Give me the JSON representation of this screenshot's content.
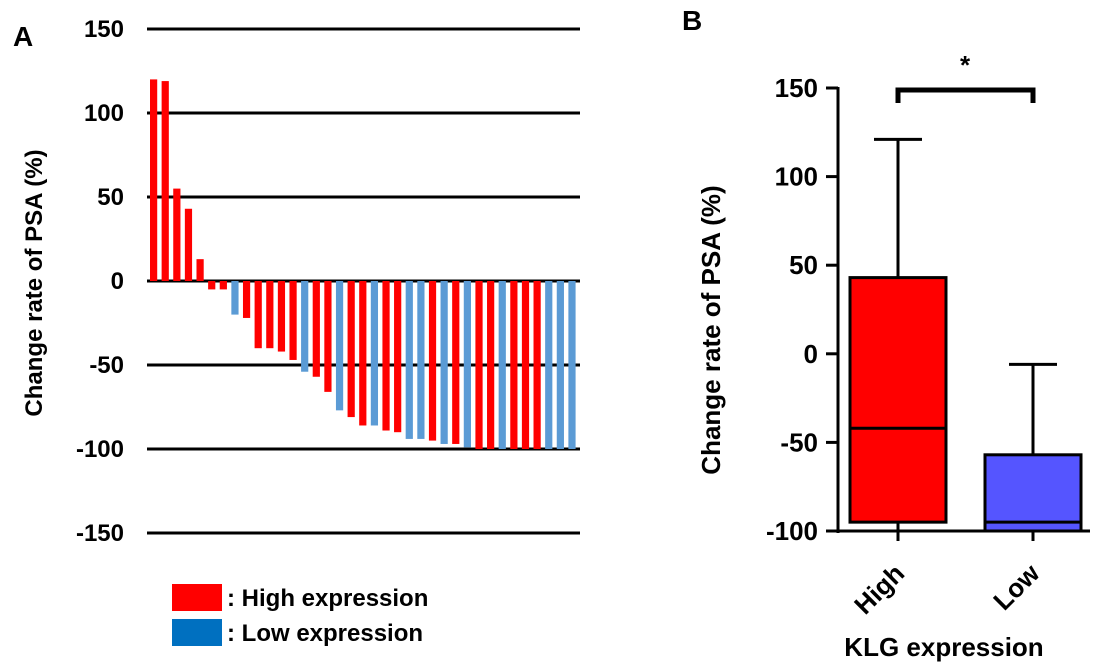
{
  "chart_data": [
    {
      "panel": "A",
      "type": "bar",
      "ylabel": "Change rate of PSA (%)",
      "xlabel": "",
      "ylim": [
        -150,
        150
      ],
      "yticks": [
        150,
        100,
        50,
        0,
        -50,
        -100,
        -150
      ],
      "grid": true,
      "legend_position": "bottom-left",
      "legend": [
        {
          "label": ": High expression",
          "color": "#ff0000"
        },
        {
          "label": ": Low expression",
          "color": "#0070c0"
        }
      ],
      "bars": [
        {
          "group": "high",
          "value": 120
        },
        {
          "group": "high",
          "value": 119
        },
        {
          "group": "high",
          "value": 55
        },
        {
          "group": "high",
          "value": 43
        },
        {
          "group": "high",
          "value": 13
        },
        {
          "group": "high",
          "value": -5
        },
        {
          "group": "high",
          "value": -5
        },
        {
          "group": "low",
          "value": -20
        },
        {
          "group": "high",
          "value": -22
        },
        {
          "group": "high",
          "value": -40
        },
        {
          "group": "high",
          "value": -40
        },
        {
          "group": "high",
          "value": -42
        },
        {
          "group": "high",
          "value": -47
        },
        {
          "group": "low",
          "value": -54
        },
        {
          "group": "high",
          "value": -57
        },
        {
          "group": "high",
          "value": -66
        },
        {
          "group": "low",
          "value": -77
        },
        {
          "group": "high",
          "value": -81
        },
        {
          "group": "high",
          "value": -86
        },
        {
          "group": "low",
          "value": -86
        },
        {
          "group": "high",
          "value": -89
        },
        {
          "group": "high",
          "value": -90
        },
        {
          "group": "low",
          "value": -94
        },
        {
          "group": "low",
          "value": -94
        },
        {
          "group": "high",
          "value": -95
        },
        {
          "group": "low",
          "value": -97
        },
        {
          "group": "high",
          "value": -97
        },
        {
          "group": "low",
          "value": -99
        },
        {
          "group": "high",
          "value": -100
        },
        {
          "group": "high",
          "value": -100
        },
        {
          "group": "low",
          "value": -100
        },
        {
          "group": "high",
          "value": -100
        },
        {
          "group": "high",
          "value": -100
        },
        {
          "group": "high",
          "value": -100
        },
        {
          "group": "low",
          "value": -100
        },
        {
          "group": "low",
          "value": -100
        },
        {
          "group": "low",
          "value": -100
        }
      ],
      "colors": {
        "high": "#ff0000",
        "low": "#5b9bd5"
      }
    },
    {
      "panel": "B",
      "type": "box",
      "xlabel": "KLG expression",
      "ylabel": "Change rate of PSA (%)",
      "ylim": [
        -100,
        150
      ],
      "yticks": [
        150,
        100,
        50,
        0,
        -50,
        -100
      ],
      "categories": [
        "High",
        "Low"
      ],
      "boxes": [
        {
          "name": "High",
          "whisker_low": -100,
          "q1": -95,
          "median": -42,
          "q3": 43,
          "whisker_high": 121,
          "color": "#ff0000"
        },
        {
          "name": "Low",
          "whisker_low": -100,
          "q1": -100,
          "median": -95,
          "q3": -57,
          "whisker_high": -6,
          "color": "#5555ff"
        }
      ],
      "significance": "*"
    }
  ],
  "panel_labels": {
    "a": "A",
    "b": "B"
  }
}
